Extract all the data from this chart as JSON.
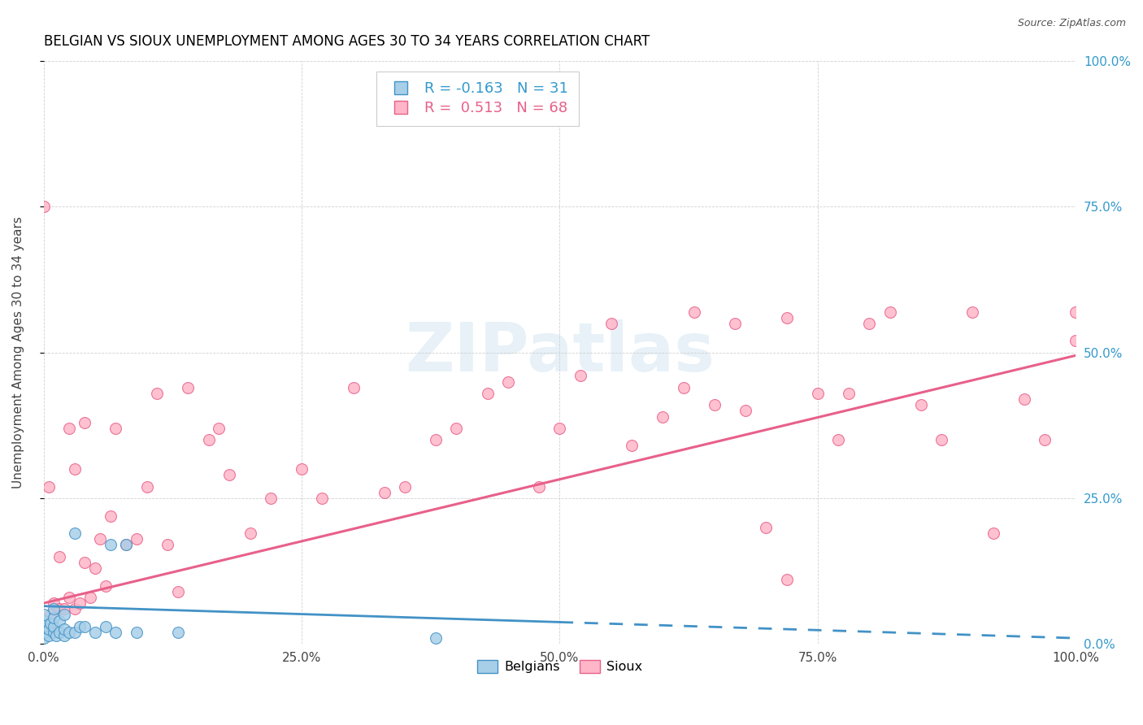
{
  "title": "BELGIAN VS SIOUX UNEMPLOYMENT AMONG AGES 30 TO 34 YEARS CORRELATION CHART",
  "source": "Source: ZipAtlas.com",
  "ylabel": "Unemployment Among Ages 30 to 34 years",
  "xlim": [
    0.0,
    1.0
  ],
  "ylim": [
    0.0,
    1.0
  ],
  "xtick_vals": [
    0.0,
    0.25,
    0.5,
    0.75,
    1.0
  ],
  "xtick_labels": [
    "0.0%",
    "25.0%",
    "50.0%",
    "75.0%",
    "100.0%"
  ],
  "ytick_vals": [
    0.0,
    0.25,
    0.5,
    0.75,
    1.0
  ],
  "ytick_labels": [
    "0.0%",
    "25.0%",
    "50.0%",
    "75.0%",
    "100.0%"
  ],
  "belgian_fill": "#a8cfe8",
  "belgian_edge": "#4292c6",
  "sioux_fill": "#ffb6c8",
  "sioux_edge": "#e8608a",
  "belgian_line_color": "#4292c6",
  "sioux_line_color": "#e8608a",
  "belgian_R": -0.163,
  "belgian_N": 31,
  "sioux_R": 0.513,
  "sioux_N": 68,
  "watermark_text": "ZIPatlas",
  "belgians_x": [
    0.0,
    0.0,
    0.0,
    0.0,
    0.0,
    0.005,
    0.005,
    0.007,
    0.01,
    0.01,
    0.01,
    0.01,
    0.012,
    0.015,
    0.015,
    0.02,
    0.02,
    0.02,
    0.025,
    0.03,
    0.03,
    0.035,
    0.04,
    0.05,
    0.06,
    0.065,
    0.07,
    0.08,
    0.09,
    0.13,
    0.38
  ],
  "belgians_y": [
    0.01,
    0.02,
    0.03,
    0.04,
    0.05,
    0.015,
    0.025,
    0.035,
    0.02,
    0.03,
    0.045,
    0.06,
    0.015,
    0.02,
    0.04,
    0.015,
    0.025,
    0.05,
    0.02,
    0.02,
    0.19,
    0.03,
    0.03,
    0.02,
    0.03,
    0.17,
    0.02,
    0.17,
    0.02,
    0.02,
    0.01
  ],
  "sioux_x": [
    0.005,
    0.007,
    0.01,
    0.015,
    0.015,
    0.02,
    0.025,
    0.025,
    0.03,
    0.03,
    0.035,
    0.04,
    0.04,
    0.045,
    0.05,
    0.055,
    0.06,
    0.065,
    0.07,
    0.08,
    0.09,
    0.1,
    0.11,
    0.12,
    0.13,
    0.14,
    0.16,
    0.17,
    0.18,
    0.2,
    0.22,
    0.25,
    0.27,
    0.3,
    0.33,
    0.35,
    0.38,
    0.4,
    0.43,
    0.45,
    0.48,
    0.5,
    0.52,
    0.55,
    0.57,
    0.6,
    0.62,
    0.63,
    0.65,
    0.67,
    0.68,
    0.7,
    0.72,
    0.75,
    0.77,
    0.78,
    0.8,
    0.82,
    0.85,
    0.87,
    0.9,
    0.92,
    0.95,
    0.97,
    1.0,
    1.0,
    0.72,
    0.0
  ],
  "sioux_y": [
    0.27,
    0.05,
    0.07,
    0.06,
    0.15,
    0.06,
    0.08,
    0.37,
    0.06,
    0.3,
    0.07,
    0.38,
    0.14,
    0.08,
    0.13,
    0.18,
    0.1,
    0.22,
    0.37,
    0.17,
    0.18,
    0.27,
    0.43,
    0.17,
    0.09,
    0.44,
    0.35,
    0.37,
    0.29,
    0.19,
    0.25,
    0.3,
    0.25,
    0.44,
    0.26,
    0.27,
    0.35,
    0.37,
    0.43,
    0.45,
    0.27,
    0.37,
    0.46,
    0.55,
    0.34,
    0.39,
    0.44,
    0.57,
    0.41,
    0.55,
    0.4,
    0.2,
    0.56,
    0.43,
    0.35,
    0.43,
    0.55,
    0.57,
    0.41,
    0.35,
    0.57,
    0.19,
    0.42,
    0.35,
    0.52,
    0.57,
    0.11,
    0.75
  ],
  "sioux_line_x0": 0.0,
  "sioux_line_y0": 0.07,
  "sioux_line_x1": 1.0,
  "sioux_line_y1": 0.495,
  "belgian_line_x0": 0.0,
  "belgian_line_y0": 0.065,
  "belgian_line_x1": 1.0,
  "belgian_line_y1": 0.01
}
